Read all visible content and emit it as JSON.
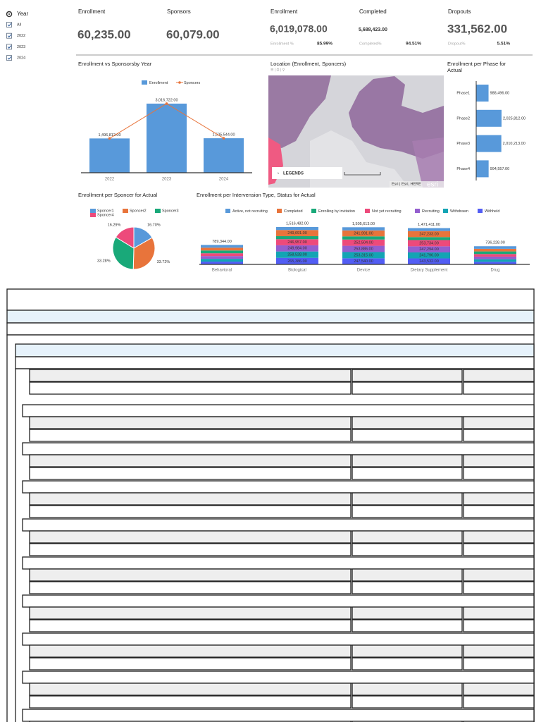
{
  "filter": {
    "title": "Year",
    "options": [
      "All",
      "2022",
      "2023",
      "2024"
    ]
  },
  "kpis": [
    {
      "label": "Enrollment",
      "value": "60,235.00"
    },
    {
      "label": "Sponsors",
      "value": "60,079.00"
    },
    {
      "label": "Enrollment",
      "value": "6,019,078.00",
      "sub_label": "Enrollment %",
      "sub_value": "85.99%"
    },
    {
      "label": "Completed",
      "value": "5,688,423.00",
      "sub_label": "Completed%",
      "sub_value": "94.51%"
    },
    {
      "label": "Dropouts",
      "value": "331,562.00",
      "sub_label": "Dropout%",
      "sub_value": "5.51%"
    }
  ],
  "chart_data": [
    {
      "type": "combo",
      "title": "Enrollment vs Sponsorsby Year",
      "categories": [
        "2022",
        "2023",
        "2024"
      ],
      "series": [
        {
          "name": "Enrollment",
          "kind": "bar",
          "color": "#5899da",
          "values": [
            1496812,
            3016722,
            1505544
          ],
          "value_labels": [
            "1,496,812.00",
            "3,016,722.00",
            "1,505,544.00"
          ]
        },
        {
          "name": "Sponcers",
          "kind": "line",
          "color": "#e8743b",
          "values": [
            1496812,
            3016722,
            1505544
          ]
        }
      ],
      "ylim": [
        0,
        3000000
      ]
    },
    {
      "type": "map",
      "title": "Location (Enrollment, Sponcers)",
      "legend_button": "LEGENDS",
      "attribution": "Esri | Esri, HERE",
      "logo": "esri"
    },
    {
      "type": "hbar",
      "title": "Enrollment per Phase for Actual",
      "categories": [
        "Phase1",
        "Phase2",
        "Phase3",
        "Phase4"
      ],
      "values": [
        988496,
        2025812,
        2010213,
        994557
      ],
      "value_labels": [
        "988,496.00",
        "2,025,812.00",
        "2,010,213.00",
        "994,557.00"
      ],
      "color": "#5899da",
      "xlim": [
        0,
        2000000
      ]
    },
    {
      "type": "pie",
      "title": "Enrollment per Sponcer for Actual",
      "categories": [
        "Sponcer1",
        "Sponcer2",
        "Sponcer3",
        "Sponcer4"
      ],
      "values": [
        16.7,
        33.72,
        33.28,
        16.29
      ],
      "value_labels": [
        "16.70%",
        "33.72%",
        "33.28%",
        "16.29%"
      ],
      "colors": [
        "#5899da",
        "#e8743b",
        "#19a979",
        "#ed4a7b"
      ]
    },
    {
      "type": "stacked_bar",
      "title": "Enrollment per Intervension Type, Status for Actual",
      "categories": [
        "Behavioral",
        "Biological",
        "Device",
        "Dietary Supplement",
        "Drug"
      ],
      "series": [
        {
          "name": "Active, not recruiting",
          "color": "#5899da",
          "values": [
            112763,
            122968,
            128000,
            118911,
            105175
          ],
          "value_labels": [
            null,
            null,
            null,
            null,
            null
          ]
        },
        {
          "name": "Completed",
          "color": "#e8743b",
          "values": [
            112763,
            249691,
            241991,
            247233,
            105175
          ],
          "value_labels": [
            null,
            "249,691.00",
            "241,991.00",
            "247,233.00",
            null
          ]
        },
        {
          "name": "Enrolling by invitation",
          "color": "#19a979",
          "values": [
            112763,
            122968,
            128377,
            118911,
            105175
          ],
          "value_labels": [
            null,
            null,
            null,
            null,
            null
          ]
        },
        {
          "name": "Not yet recruiting",
          "color": "#ed4a7b",
          "values": [
            112763,
            246957,
            252504,
            253734,
            105175
          ],
          "value_labels": [
            null,
            "246,957.00",
            "252,504.00",
            "253,734.00",
            null
          ]
        },
        {
          "name": "Recruiting",
          "color": "#945ecf",
          "values": [
            112763,
            249984,
            253886,
            247294,
            105175
          ],
          "value_labels": [
            null,
            "249,984.00",
            "253,886.00",
            "247,294.00",
            null
          ]
        },
        {
          "name": "Withdrawn",
          "color": "#13a4b4",
          "values": [
            112763,
            258528,
            253315,
            241796,
            105175
          ],
          "value_labels": [
            null,
            "258,528.00",
            "253,315.00",
            "241,796.00",
            null
          ]
        },
        {
          "name": "Withheld",
          "color": "#525df4",
          "values": [
            112766,
            265386,
            247540,
            243532,
            105178
          ],
          "value_labels": [
            null,
            "265,386.00",
            "247,540.00",
            "243,532.00",
            null
          ]
        }
      ],
      "totals": [
        789344,
        1516482,
        1505613,
        1471411,
        736228
      ],
      "total_labels": [
        "789,344.00",
        "1,516,482.00",
        "1,505,613.00",
        "1,471,411.00",
        "736,228.00"
      ],
      "ylim": [
        0,
        1600000
      ]
    }
  ]
}
